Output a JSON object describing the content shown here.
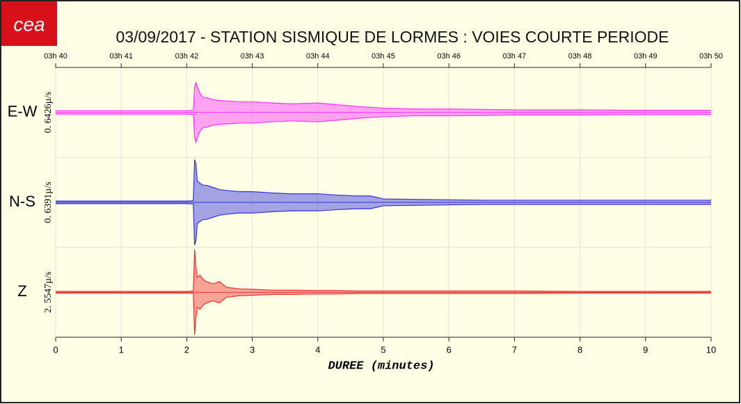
{
  "logo": "cea",
  "chart_data": {
    "type": "seismogram",
    "title": "03/09/2017  -  STATION SISMIQUE DE LORMES : VOIES COURTE PERIODE",
    "xlabel": "DUREE (minutes)",
    "xlim": [
      0,
      10
    ],
    "xticks": [
      0,
      1,
      2,
      3,
      4,
      5,
      6,
      7,
      8,
      9,
      10
    ],
    "top_ticks": [
      {
        "value": 0,
        "label": "03h 40"
      },
      {
        "value": 1,
        "label": "03h 41"
      },
      {
        "value": 2,
        "label": "03h 42"
      },
      {
        "value": 3,
        "label": "03h 43"
      },
      {
        "value": 4,
        "label": "03h 44"
      },
      {
        "value": 5,
        "label": "03h 45"
      },
      {
        "value": 6,
        "label": "03h 46"
      },
      {
        "value": 7,
        "label": "03h 47"
      },
      {
        "value": 8,
        "label": "03h 48"
      },
      {
        "value": 9,
        "label": "03h 49"
      },
      {
        "value": 10,
        "label": "03h 50"
      }
    ],
    "grid": true,
    "x": [
      0,
      0.5,
      1,
      1.5,
      2,
      2.1,
      2.12,
      2.14,
      2.16,
      2.2,
      2.25,
      2.3,
      2.4,
      2.5,
      2.6,
      2.8,
      3,
      3.3,
      3.6,
      4,
      4.3,
      4.6,
      4.8,
      5,
      5.5,
      6,
      6.5,
      7,
      8,
      9,
      10
    ],
    "series": [
      {
        "name": "E-W",
        "scale": "0. 6426µ/s",
        "color": "#ff33ff",
        "values": [
          0.04,
          0.04,
          0.04,
          0.04,
          0.04,
          0.05,
          0.6,
          0.7,
          0.6,
          0.45,
          0.35,
          0.35,
          0.3,
          0.28,
          0.27,
          0.25,
          0.25,
          0.22,
          0.2,
          0.22,
          0.18,
          0.14,
          0.12,
          0.1,
          0.08,
          0.08,
          0.07,
          0.06,
          0.06,
          0.05,
          0.05
        ]
      },
      {
        "name": "N-S",
        "scale": "0. 6391µ/s",
        "color": "#3333dd",
        "values": [
          0.03,
          0.03,
          0.03,
          0.03,
          0.03,
          0.04,
          1.0,
          0.9,
          0.5,
          0.45,
          0.4,
          0.4,
          0.35,
          0.3,
          0.28,
          0.25,
          0.25,
          0.22,
          0.2,
          0.2,
          0.17,
          0.15,
          0.15,
          0.08,
          0.07,
          0.06,
          0.05,
          0.05,
          0.05,
          0.05,
          0.05
        ]
      },
      {
        "name": "Z",
        "scale": "2. 5547µ/s",
        "color": "#ee3333",
        "values": [
          0.02,
          0.02,
          0.02,
          0.02,
          0.02,
          0.03,
          1.0,
          0.6,
          0.35,
          0.4,
          0.3,
          0.25,
          0.2,
          0.25,
          0.12,
          0.08,
          0.07,
          0.05,
          0.05,
          0.04,
          0.04,
          0.03,
          0.03,
          0.03,
          0.03,
          0.03,
          0.03,
          0.03,
          0.02,
          0.02,
          0.02
        ]
      }
    ]
  }
}
